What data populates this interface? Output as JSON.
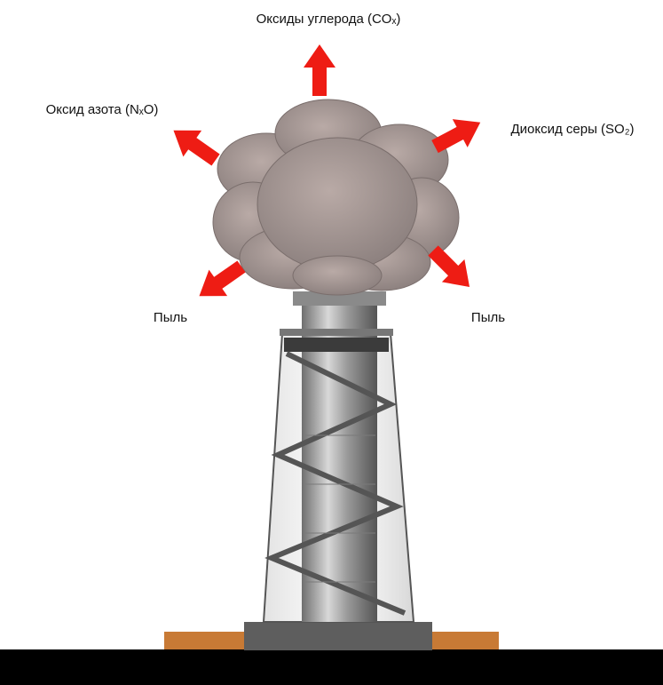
{
  "labels": {
    "carbon_oxides": "Оксиды углерода (COₓ)",
    "nitrogen_oxide": "Оксид азота (NₓO)",
    "sulfur_dioxide": "Диоксид серы (SO₂)",
    "dust_left": "Пыль",
    "dust_right": "Пыль"
  }
}
